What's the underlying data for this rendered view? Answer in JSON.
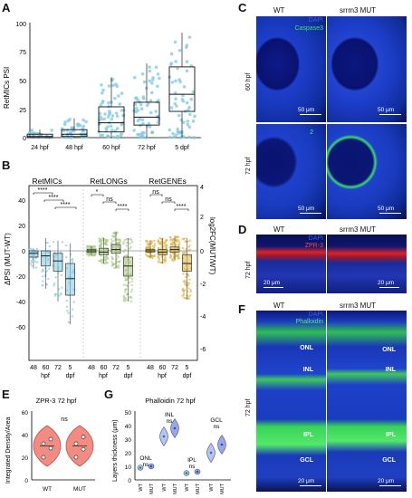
{
  "panels": {
    "a": "A",
    "b": "B",
    "c": "C",
    "d": "D",
    "e": "E",
    "f": "F",
    "g": "G"
  },
  "panel_a": {
    "ylabel": "RetMICs PSI",
    "yticks": [
      "0",
      "25",
      "50",
      "75",
      "100"
    ],
    "xcats": [
      "24 hpf",
      "48 hpf",
      "60 hpf",
      "72 hpf",
      "5 dpf"
    ],
    "color": "#7ec8e3"
  },
  "panel_b": {
    "ylabel": "ΔPSI (MUT-WT)",
    "y2label": "log2FC(MUT/WT)",
    "yticks_left": [
      "40",
      "20",
      "0",
      "-20",
      "-40",
      "-60"
    ],
    "yticks_right": [
      "4",
      "2",
      "0",
      "-2",
      "-4",
      "-6"
    ],
    "groups": [
      "RetMICs",
      "RetLONGs",
      "RetGENEs"
    ],
    "colors": [
      "#7ec8e3",
      "#a8c97f",
      "#e0b440"
    ],
    "sig_micS": [
      "****",
      "****",
      "****"
    ],
    "sig_long": [
      "*",
      "ns",
      "****"
    ],
    "sig_gene": [
      "ns",
      "ns",
      "****"
    ],
    "xticks": [
      "48",
      "60",
      "72",
      "5"
    ],
    "xsub": [
      "hpf",
      "dpf"
    ]
  },
  "panel_c": {
    "wt": "WT",
    "mut": "srrm3 MUT",
    "stain1": "DAPI",
    "stain2": "Caspase3",
    "row1": "60 hpf",
    "row2": "72 hpf",
    "scale": "50 μm",
    "marks": [
      "1",
      "2"
    ]
  },
  "panel_d": {
    "wt": "WT",
    "mut": "srrm3 MUT",
    "stain1": "DAPI",
    "stain2": "ZPR-3",
    "row": "72 hpf",
    "scale": "20 μm"
  },
  "panel_e": {
    "title": "ZPR-3 72 hpf",
    "ylabel": "Integrated Density/Area",
    "yticks": [
      "0",
      "20",
      "40",
      "60"
    ],
    "xcats": [
      "WT",
      "MUT"
    ],
    "sig": "ns"
  },
  "panel_f": {
    "wt": "WT",
    "mut": "srrm3 MUT",
    "stain1": "DAPI",
    "stain2": "Phalloidin",
    "row": "72 hpf",
    "layers": [
      "ONL",
      "INL",
      "IPL",
      "GCL"
    ],
    "scale": "20 μm"
  },
  "panel_g": {
    "title": "Phalloidin 72 hpf",
    "ylabel": "Layers thickness (μm)",
    "yticks": [
      "0",
      "10",
      "20",
      "30",
      "40",
      "50"
    ],
    "groups": [
      "ONL",
      "INL",
      "IPL",
      "GCL"
    ],
    "sig": "ns",
    "xcats": [
      "WT",
      "MUT"
    ]
  },
  "chart_data": [
    {
      "type": "box",
      "id": "A",
      "ylabel": "RetMICs PSI",
      "ylim": [
        0,
        100
      ],
      "categories": [
        "24 hpf",
        "48 hpf",
        "60 hpf",
        "72 hpf",
        "5 dpf"
      ],
      "box": [
        {
          "q1": 0,
          "median": 1,
          "q3": 3,
          "min": 0,
          "max": 7
        },
        {
          "q1": 1,
          "median": 3,
          "q3": 7,
          "min": 0,
          "max": 17
        },
        {
          "q1": 5,
          "median": 13,
          "q3": 27,
          "min": 0,
          "max": 53
        },
        {
          "q1": 11,
          "median": 18,
          "q3": 31,
          "min": 0,
          "max": 65
        },
        {
          "q1": 23,
          "median": 38,
          "q3": 62,
          "min": 0,
          "max": 92
        }
      ]
    },
    {
      "type": "box",
      "id": "B",
      "ylabel": "ΔPSI (MUT-WT)",
      "ylim": [
        -60,
        45
      ],
      "groups": [
        {
          "name": "RetMICs",
          "box": [
            {
              "q1": -5,
              "median": -2,
              "q3": 0,
              "min": -14,
              "max": 2
            },
            {
              "q1": -12,
              "median": -4,
              "q3": 0,
              "min": -30,
              "max": 10
            },
            {
              "q1": -16,
              "median": -8,
              "q3": -2,
              "min": -40,
              "max": 8
            },
            {
              "q1": -35,
              "median": -22,
              "q3": -10,
              "min": -58,
              "max": 6
            }
          ]
        },
        {
          "name": "RetLONGs",
          "box": [
            {
              "q1": -1,
              "median": 0,
              "q3": 1,
              "min": -4,
              "max": 4
            },
            {
              "q1": -3,
              "median": -1,
              "q3": 2,
              "min": -10,
              "max": 10
            },
            {
              "q1": -2,
              "median": 1,
              "q3": 5,
              "min": -14,
              "max": 15
            },
            {
              "q1": -20,
              "median": -12,
              "q3": -5,
              "min": -40,
              "max": 10
            }
          ]
        },
        {
          "name": "RetGENEs",
          "box": [
            {
              "q1": -1,
              "median": 0,
              "q3": 1,
              "min": -6,
              "max": 8
            },
            {
              "q1": -3,
              "median": -1,
              "q3": 1,
              "min": -10,
              "max": 10
            },
            {
              "q1": -1,
              "median": 1,
              "q3": 3,
              "min": -8,
              "max": 12
            },
            {
              "q1": -16,
              "median": -10,
              "q3": -3,
              "min": -38,
              "max": 10
            }
          ]
        }
      ]
    },
    {
      "type": "violin",
      "id": "E",
      "title": "ZPR-3 72 hpf",
      "ylim": [
        0,
        60
      ],
      "categories": [
        "WT",
        "MUT"
      ],
      "medians": [
        30,
        30
      ],
      "points": [
        [
          20,
          28,
          32,
          36
        ],
        [
          20,
          27,
          32,
          38
        ]
      ]
    },
    {
      "type": "violin",
      "id": "G",
      "title": "Phalloidin 72 hpf",
      "ylim": [
        0,
        50
      ],
      "groups": [
        "ONL",
        "INL",
        "IPL",
        "GCL"
      ],
      "wt": [
        9,
        32,
        5,
        20
      ],
      "mut": [
        10,
        38,
        6,
        26
      ]
    }
  ]
}
